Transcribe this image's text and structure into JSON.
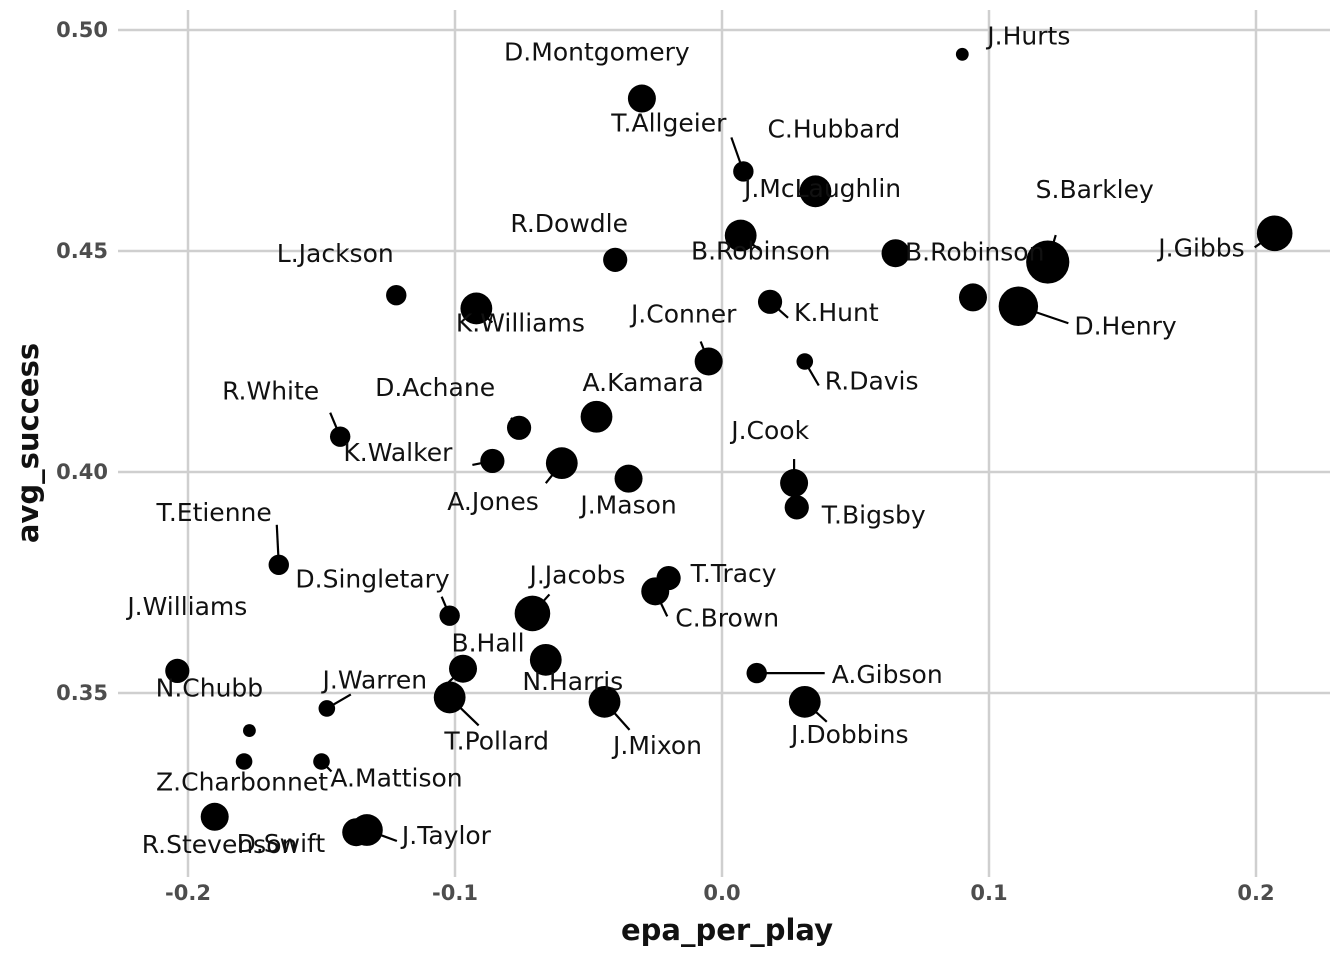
{
  "chart_data": {
    "type": "scatter",
    "xlabel": "epa_per_play",
    "ylabel": "avg_success",
    "xlim": [
      -0.225,
      0.228
    ],
    "ylim": [
      0.3125,
      0.5045
    ],
    "xticks": [
      -0.2,
      -0.1,
      0.0,
      0.1,
      0.2
    ],
    "xtick_labels": [
      "-0.2",
      "-0.1",
      "0.0",
      "0.1",
      "0.2"
    ],
    "yticks": [
      0.35,
      0.4,
      0.45,
      0.5
    ],
    "ytick_labels": [
      "0.35",
      "0.40",
      "0.45",
      "0.50"
    ],
    "grid": true,
    "legend": "none",
    "size_encoding": "point size varies by player (relative scale, no legend shown)",
    "points": [
      {
        "name": "J.Hurts",
        "x": 0.09,
        "y": 0.4945,
        "size": 1
      },
      {
        "name": "D.Montgomery",
        "x": -0.03,
        "y": 0.4845,
        "size": 5
      },
      {
        "name": "T.Allgeier",
        "x": 0.008,
        "y": 0.468,
        "size": 3
      },
      {
        "name": "C.Hubbard",
        "x": 0.035,
        "y": 0.4635,
        "size": 6
      },
      {
        "name": "J.Gibbs",
        "x": 0.207,
        "y": 0.454,
        "size": 7
      },
      {
        "name": "B.Robinson",
        "x": 0.007,
        "y": 0.4535,
        "size": 6
      },
      {
        "name": "J.McLaughlin",
        "x": 0.065,
        "y": 0.4495,
        "size": 5
      },
      {
        "name": "S.Barkley",
        "x": 0.122,
        "y": 0.4475,
        "size": 9
      },
      {
        "name": "R.Dowdle",
        "x": -0.04,
        "y": 0.448,
        "size": 4
      },
      {
        "name": "L.Jackson",
        "x": -0.122,
        "y": 0.44,
        "size": 3
      },
      {
        "name": "B.Robinson",
        "x": 0.094,
        "y": 0.4395,
        "size": 5
      },
      {
        "name": "D.Henry",
        "x": 0.111,
        "y": 0.4375,
        "size": 8
      },
      {
        "name": "K.Hunt",
        "x": 0.018,
        "y": 0.4385,
        "size": 4
      },
      {
        "name": "K.Williams",
        "x": -0.092,
        "y": 0.437,
        "size": 6
      },
      {
        "name": "J.Conner",
        "x": -0.005,
        "y": 0.425,
        "size": 5
      },
      {
        "name": "R.Davis",
        "x": 0.031,
        "y": 0.425,
        "size": 2
      },
      {
        "name": "A.Kamara",
        "x": -0.047,
        "y": 0.4125,
        "size": 6
      },
      {
        "name": "D.Achane",
        "x": -0.076,
        "y": 0.41,
        "size": 4
      },
      {
        "name": "R.White",
        "x": -0.143,
        "y": 0.408,
        "size": 3
      },
      {
        "name": "K.Walker",
        "x": -0.086,
        "y": 0.4025,
        "size": 4
      },
      {
        "name": "A.Jones",
        "x": -0.06,
        "y": 0.402,
        "size": 6
      },
      {
        "name": "J.Mason",
        "x": -0.035,
        "y": 0.3985,
        "size": 5
      },
      {
        "name": "J.Cook",
        "x": 0.027,
        "y": 0.3975,
        "size": 5
      },
      {
        "name": "T.Bigsby",
        "x": 0.028,
        "y": 0.392,
        "size": 4
      },
      {
        "name": "T.Etienne",
        "x": -0.166,
        "y": 0.379,
        "size": 3
      },
      {
        "name": "T.Tracy",
        "x": -0.02,
        "y": 0.376,
        "size": 4
      },
      {
        "name": "C.Brown",
        "x": -0.025,
        "y": 0.373,
        "size": 5
      },
      {
        "name": "D.Singletary",
        "x": -0.102,
        "y": 0.3675,
        "size": 3
      },
      {
        "name": "J.Jacobs",
        "x": -0.071,
        "y": 0.368,
        "size": 7
      },
      {
        "name": "N.Harris",
        "x": -0.066,
        "y": 0.3575,
        "size": 6
      },
      {
        "name": "B.Hall",
        "x": -0.097,
        "y": 0.3555,
        "size": 5
      },
      {
        "name": "J.Williams",
        "x": -0.204,
        "y": 0.355,
        "size": 4
      },
      {
        "name": "A.Gibson",
        "x": 0.013,
        "y": 0.3545,
        "size": 3
      },
      {
        "name": "T.Pollard",
        "x": -0.102,
        "y": 0.349,
        "size": 6
      },
      {
        "name": "J.Mixon",
        "x": -0.044,
        "y": 0.348,
        "size": 6
      },
      {
        "name": "J.Dobbins",
        "x": 0.031,
        "y": 0.348,
        "size": 6
      },
      {
        "name": "J.Warren",
        "x": -0.148,
        "y": 0.3465,
        "size": 2
      },
      {
        "name": "N.Chubb",
        "x": -0.177,
        "y": 0.3415,
        "size": 1
      },
      {
        "name": "Z.Charbonnet",
        "x": -0.179,
        "y": 0.3345,
        "size": 2
      },
      {
        "name": "A.Mattison",
        "x": -0.15,
        "y": 0.3345,
        "size": 2
      },
      {
        "name": "R.Stevenson",
        "x": -0.19,
        "y": 0.322,
        "size": 5
      },
      {
        "name": "D.Swift",
        "x": -0.137,
        "y": 0.3185,
        "size": 5
      },
      {
        "name": "J.Taylor",
        "x": -0.133,
        "y": 0.319,
        "size": 6
      }
    ]
  }
}
